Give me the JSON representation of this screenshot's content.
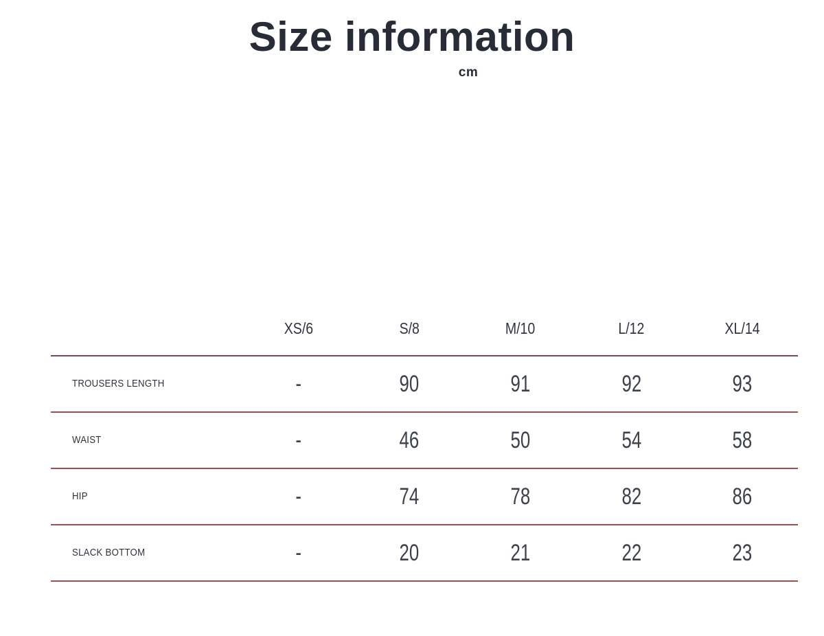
{
  "header": {
    "title": "Size information",
    "unit": "cm"
  },
  "table": {
    "columns": [
      "XS/6",
      "S/8",
      "M/10",
      "L/12",
      "XL/14"
    ],
    "rows": [
      {
        "label": "TROUSERS LENGTH",
        "values": [
          "-",
          "90",
          "91",
          "92",
          "93"
        ]
      },
      {
        "label": "WAIST",
        "values": [
          "-",
          "46",
          "50",
          "54",
          "58"
        ]
      },
      {
        "label": "HIP",
        "values": [
          "-",
          "74",
          "78",
          "82",
          "86"
        ]
      },
      {
        "label": "SLACK BOTTOM",
        "values": [
          "-",
          "20",
          "21",
          "22",
          "23"
        ]
      }
    ]
  },
  "colors": {
    "title_text": "#272c37",
    "table_text": "#3c414a",
    "label_text": "#2e333d",
    "header_rule": "#7b4851",
    "row_rule": "#a84b4b"
  },
  "chart_data": {
    "type": "table",
    "title": "Size information",
    "unit": "cm",
    "columns": [
      "XS/6",
      "S/8",
      "M/10",
      "L/12",
      "XL/14"
    ],
    "rows": [
      {
        "measurement": "TROUSERS LENGTH",
        "values": [
          "-",
          90,
          91,
          92,
          93
        ]
      },
      {
        "measurement": "WAIST",
        "values": [
          "-",
          46,
          50,
          54,
          58
        ]
      },
      {
        "measurement": "HIP",
        "values": [
          "-",
          74,
          78,
          82,
          86
        ]
      },
      {
        "measurement": "SLACK BOTTOM",
        "values": [
          "-",
          20,
          21,
          22,
          23
        ]
      }
    ],
    "notes": "XS/6 column has no values (dash). Rows separated by red horizontal rules."
  }
}
